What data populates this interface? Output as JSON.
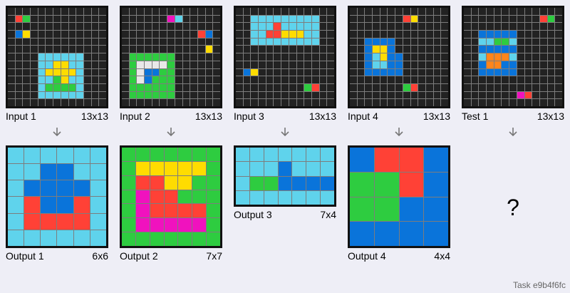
{
  "colors": {
    "0": "#222222",
    "1": "#0a74da",
    "2": "#ff4136",
    "3": "#2ecc40",
    "4": "#ffdc00",
    "5": "#aaaaaa",
    "6": "#f012be",
    "7": "#ff851b",
    "8": "#7fdbff",
    "9": "#870c25",
    "B": "#5fd3ec",
    "W": "#e8e8e8"
  },
  "pairs": [
    {
      "label": "Input 1",
      "size": "13x13",
      "grid": [
        "0000000000000",
        "0230000000000",
        "0000000000000",
        "0140000000000",
        "0000000000000",
        "0000000000000",
        "0000BBBBBB000",
        "0000BB44BB000",
        "0000B4444B000",
        "0000BB34BB000",
        "0000B3333B000",
        "0000BBBBBB000",
        "0000000000000"
      ],
      "out_label": "Output 1",
      "out_size": "6x6",
      "out_grid": [
        "BBBBBB",
        "BB11BB",
        "B1111B",
        "B2112B",
        "B2222B",
        "BBBBBB"
      ]
    },
    {
      "label": "Input 2",
      "size": "13x13",
      "grid": [
        "0000000000000",
        "0000006B00000",
        "0000000000000",
        "0000000000210",
        "0000000000000",
        "0000000000040",
        "0333333000000",
        "03WWWW3000000",
        "03W1133000000",
        "03W1333000000",
        "0333333000000",
        "0333333000000",
        "0000000000000"
      ],
      "out_label": "Output 2",
      "out_size": "7x7",
      "out_grid": [
        "3333333",
        "3444443",
        "3224433",
        "3622333",
        "3622223",
        "3666663",
        "3333333"
      ]
    },
    {
      "label": "Input 3",
      "size": "13x13",
      "grid": [
        "0000000000000",
        "00BBBBBBBBB00",
        "00BBB2BBBBB00",
        "00BB22444BB00",
        "00BBBBBBBBB00",
        "0000000000000",
        "0000000000000",
        "0000000000000",
        "0140000000000",
        "0000000000000",
        "0000000003200",
        "0000000000000",
        "0000000000000"
      ],
      "out_label": "Output 3",
      "out_size": "7x4",
      "out_grid": [
        "BBBBBBB",
        "BBB1BBB",
        "B331111",
        "BBBBBBB"
      ]
    },
    {
      "label": "Input 4",
      "size": "13x13",
      "grid": [
        "0000000000000",
        "0000000240000",
        "0000000000000",
        "0000000000000",
        "0011110000000",
        "0014410000000",
        "001B411000000",
        "001BB11000000",
        "0011111000000",
        "0000000000000",
        "0000000320000",
        "0000000000000",
        "0000000000000"
      ],
      "out_label": "Output 4",
      "out_size": "4x4",
      "out_grid": [
        "1221",
        "3321",
        "3311",
        "1111"
      ]
    },
    {
      "label": "Test 1",
      "size": "13x13",
      "grid": [
        "0000000000000",
        "0000000000230",
        "0000000000000",
        "0011111000000",
        "00BB33B000000",
        "0011111000000",
        "00B777B000000",
        "0017711000000",
        "0011111000000",
        "0000000000000",
        "0000000000000",
        "0000000620000",
        "0000000000000"
      ],
      "out_label": "",
      "out_size": "",
      "question": "?"
    }
  ],
  "task_id": "Task e9b4f6fc"
}
